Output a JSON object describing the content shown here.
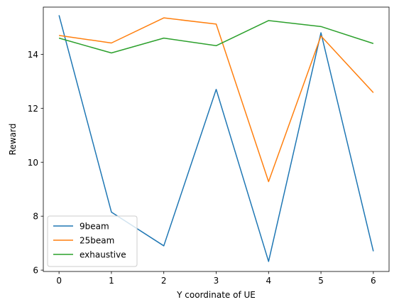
{
  "chart_data": {
    "type": "line",
    "title": "",
    "xlabel": "Y coordinate of UE",
    "ylabel": "Reward",
    "x": [
      0,
      1,
      2,
      3,
      4,
      5,
      6
    ],
    "xlim": [
      -0.3,
      6.3
    ],
    "ylim": [
      5.95,
      15.75
    ],
    "xticks": [
      0,
      1,
      2,
      3,
      4,
      5,
      6
    ],
    "yticks": [
      6,
      8,
      10,
      12,
      14
    ],
    "grid": false,
    "legend_position": "lower-left",
    "series": [
      {
        "name": "9beam",
        "color": "#1f77b4",
        "values": [
          15.45,
          8.15,
          6.9,
          12.7,
          6.32,
          14.8,
          6.7
        ]
      },
      {
        "name": "25beam",
        "color": "#ff7f0e",
        "values": [
          14.7,
          14.42,
          15.35,
          15.12,
          9.28,
          14.68,
          12.58
        ]
      },
      {
        "name": "exhaustive",
        "color": "#2ca02c",
        "values": [
          14.6,
          14.05,
          14.6,
          14.32,
          15.25,
          15.03,
          14.4
        ]
      }
    ]
  }
}
